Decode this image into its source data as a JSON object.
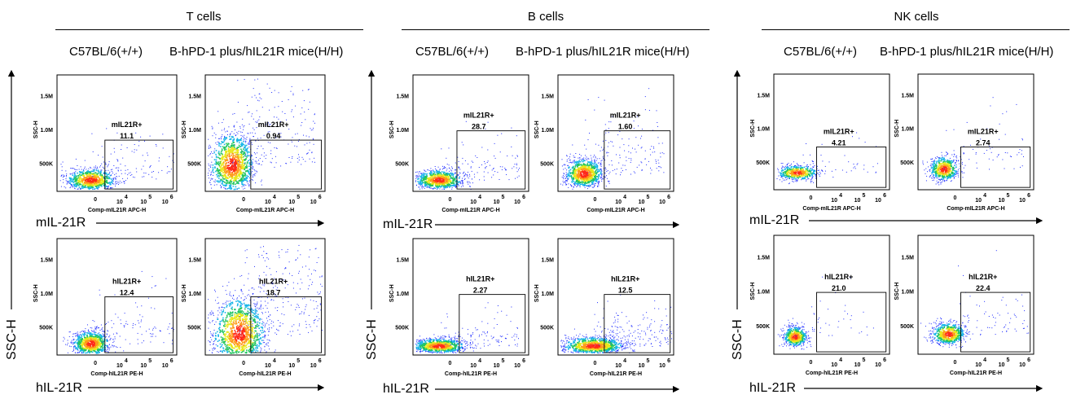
{
  "groups": [
    {
      "title": "T cells",
      "col_labels": [
        "C57BL/6(+/+)",
        "B-hPD-1 plus/hIL21R mice(H/H)"
      ]
    },
    {
      "title": "B cells",
      "col_labels": [
        "C57BL/6(+/+)",
        "B-hPD-1 plus/hIL21R mice(H/H)"
      ]
    },
    {
      "title": "NK cells",
      "col_labels": [
        "C57BL/6(+/+)",
        "B-hPD-1 plus/hIL21R mice(H/H)"
      ]
    }
  ],
  "row_axis_labels": [
    "mIL-21R",
    "hIL-21R"
  ],
  "y_axis_label": "SSC-H",
  "plot_text": {
    "y_ticks": [
      "1.5M",
      "1.0M",
      "500K"
    ],
    "y_title": "SSC-H",
    "x_ticks": [
      "0",
      "10",
      "4",
      "10",
      "5",
      "10",
      "6"
    ],
    "x_titles": [
      "Comp-mIL21R APC-H",
      "Comp-hIL21R PE-H"
    ]
  },
  "colors": {
    "axis": "#000000",
    "density_low": "#1f2dff",
    "density_mid": "#22c55e",
    "density_high": "#ff2a1a"
  },
  "chart_data": [
    {
      "type": "scatter",
      "panel": "T cells / C57BL/6(+/+) / mIL-21R",
      "xlabel": "Comp-mIL21R APC-H",
      "ylabel": "SSC-H",
      "yticks": [
        "500K",
        "1.0M",
        "1.5M"
      ],
      "gate": "mIL21R+",
      "percent": "11.1"
    },
    {
      "type": "scatter",
      "panel": "T cells / B-hPD-1 plus/hIL21R mice(H/H) / mIL-21R",
      "xlabel": "Comp-mIL21R APC-H",
      "ylabel": "SSC-H",
      "yticks": [
        "500K",
        "1.0M",
        "1.5M"
      ],
      "gate": "mIL21R+",
      "percent": "0.94"
    },
    {
      "type": "scatter",
      "panel": "T cells / C57BL/6(+/+) / hIL-21R",
      "xlabel": "Comp-hIL21R PE-H",
      "ylabel": "SSC-H",
      "yticks": [
        "500K",
        "1.0M",
        "1.5M"
      ],
      "gate": "hIL21R+",
      "percent": "12.4"
    },
    {
      "type": "scatter",
      "panel": "T cells / B-hPD-1 plus/hIL21R mice(H/H) / hIL-21R",
      "xlabel": "Comp-hIL21R PE-H",
      "ylabel": "SSC-H",
      "yticks": [
        "500K",
        "1.0M",
        "1.5M"
      ],
      "gate": "hIL21R+",
      "percent": "18.7"
    },
    {
      "type": "scatter",
      "panel": "B cells / C57BL/6(+/+) / mIL-21R",
      "xlabel": "Comp-mIL21R APC-H",
      "ylabel": "SSC-H",
      "yticks": [
        "500K",
        "1.0M",
        "1.5M"
      ],
      "gate": "mIL21R+",
      "percent": "28.7"
    },
    {
      "type": "scatter",
      "panel": "B cells / B-hPD-1 plus/hIL21R mice(H/H) / mIL-21R",
      "xlabel": "Comp-mIL21R APC-H",
      "ylabel": "SSC-H",
      "yticks": [
        "500K",
        "1.0M",
        "1.5M"
      ],
      "gate": "mIL21R+",
      "percent": "1.60"
    },
    {
      "type": "scatter",
      "panel": "B cells / C57BL/6(+/+) / hIL-21R",
      "xlabel": "Comp-hIL21R PE-H",
      "ylabel": "SSC-H",
      "yticks": [
        "500K",
        "1.0M",
        "1.5M"
      ],
      "gate": "hIL21R+",
      "percent": "2.27"
    },
    {
      "type": "scatter",
      "panel": "B cells / B-hPD-1 plus/hIL21R mice(H/H) / hIL-21R",
      "xlabel": "Comp-hIL21R PE-H",
      "ylabel": "SSC-H",
      "yticks": [
        "500K",
        "1.0M",
        "1.5M"
      ],
      "gate": "hIL21R+",
      "percent": "12.5"
    },
    {
      "type": "scatter",
      "panel": "NK cells / C57BL/6(+/+) / mIL-21R",
      "xlabel": "Comp-mIL21R APC-H",
      "ylabel": "SSC-H",
      "yticks": [
        "500K",
        "1.0M",
        "1.5M"
      ],
      "gate": "mIL21R+",
      "percent": "4.21"
    },
    {
      "type": "scatter",
      "panel": "NK cells / B-hPD-1 plus/hIL21R mice(H/H) / mIL-21R",
      "xlabel": "Comp-mIL21R APC-H",
      "ylabel": "SSC-H",
      "yticks": [
        "500K",
        "1.0M",
        "1.5M"
      ],
      "gate": "mIL21R+",
      "percent": "2.74"
    },
    {
      "type": "scatter",
      "panel": "NK cells / C57BL/6(+/+) / hIL-21R",
      "xlabel": "Comp-hIL21R PE-H",
      "ylabel": "SSC-H",
      "yticks": [
        "500K",
        "1.0M",
        "1.5M"
      ],
      "gate": "hIL21R+",
      "percent": "21.0"
    },
    {
      "type": "scatter",
      "panel": "NK cells / B-hPD-1 plus/hIL21R mice(H/H) / hIL-21R",
      "xlabel": "Comp-hIL21R PE-H",
      "ylabel": "SSC-H",
      "yticks": [
        "500K",
        "1.0M",
        "1.5M"
      ],
      "gate": "hIL21R+",
      "percent": "22.4"
    }
  ]
}
